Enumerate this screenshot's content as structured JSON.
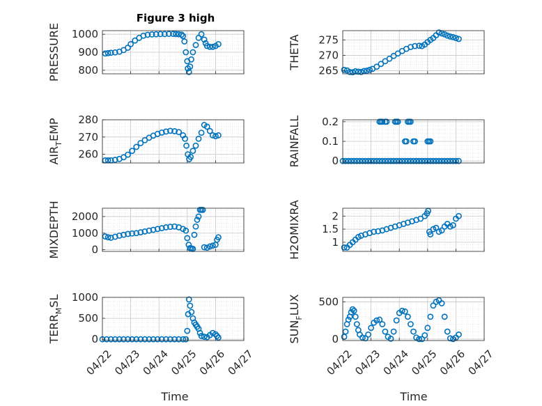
{
  "figure": {
    "title": "Figure 3 high",
    "xlabel": "Time",
    "x_ticks": [
      "04/22",
      "04/23",
      "04/24",
      "04/25",
      "04/26",
      "04/27"
    ]
  },
  "colors": {
    "marker": "#0072BD",
    "grid": "#d9d9d9",
    "axis": "#262626"
  },
  "chart_data": [
    {
      "type": "scatter",
      "id": "pressure",
      "ylabel_parts": [
        "PRESSURE"
      ],
      "ylim": [
        780,
        1020
      ],
      "yticks": [
        800,
        900,
        1000
      ],
      "xlim": [
        "04/22",
        "04/27"
      ],
      "grid": true,
      "x": [
        0.1,
        0.2,
        0.3,
        0.45,
        0.6,
        0.75,
        0.9,
        1.0,
        1.15,
        1.3,
        1.45,
        1.6,
        1.75,
        1.9,
        2.05,
        2.2,
        2.35,
        2.5,
        2.6,
        2.7,
        2.8,
        2.85,
        2.9,
        2.95,
        3.0,
        3.02,
        3.06,
        3.1,
        3.14,
        3.2,
        3.3,
        3.4,
        3.5,
        3.6,
        3.65,
        3.7,
        3.8,
        3.9,
        4.0,
        4.1
      ],
      "y": [
        893,
        895,
        897,
        899,
        903,
        912,
        925,
        945,
        965,
        980,
        992,
        997,
        999,
        1000,
        1001,
        1001,
        1002,
        1002,
        1001,
        1000,
        998,
        990,
        960,
        900,
        850,
        810,
        790,
        820,
        860,
        900,
        940,
        980,
        1000,
        970,
        950,
        935,
        930,
        930,
        935,
        945
      ]
    },
    {
      "type": "scatter",
      "id": "theta",
      "ylabel_parts": [
        "THETA"
      ],
      "ylim": [
        264,
        278
      ],
      "yticks": [
        265,
        270,
        275
      ],
      "xlim": [
        "04/22",
        "04/27"
      ],
      "grid": true,
      "x": [
        0.05,
        0.15,
        0.25,
        0.35,
        0.45,
        0.55,
        0.65,
        0.75,
        0.85,
        0.95,
        1.05,
        1.2,
        1.35,
        1.5,
        1.65,
        1.8,
        1.95,
        2.1,
        2.25,
        2.4,
        2.55,
        2.7,
        2.8,
        2.9,
        3.0,
        3.1,
        3.2,
        3.3,
        3.4,
        3.5,
        3.6,
        3.7,
        3.8,
        3.9,
        4.0,
        4.1
      ],
      "y": [
        265.3,
        265.1,
        264.6,
        264.5,
        264.8,
        264.7,
        264.6,
        264.9,
        265.0,
        265.3,
        265.6,
        266.3,
        267.2,
        268.1,
        268.9,
        269.8,
        270.6,
        271.4,
        272.1,
        272.7,
        273.0,
        273.1,
        273.0,
        273.5,
        274.3,
        275.0,
        275.6,
        276.5,
        277.4,
        277.1,
        276.8,
        276.4,
        276.1,
        275.9,
        275.6,
        275.3
      ]
    },
    {
      "type": "scatter",
      "id": "airtemp",
      "ylabel_parts": [
        "AIR",
        "T",
        "EMP"
      ],
      "ylim": [
        255,
        280
      ],
      "yticks": [
        260,
        270,
        280
      ],
      "xlim": [
        "04/22",
        "04/27"
      ],
      "grid": true,
      "x": [
        0.1,
        0.2,
        0.3,
        0.45,
        0.6,
        0.75,
        0.9,
        1.05,
        1.2,
        1.35,
        1.5,
        1.65,
        1.8,
        1.95,
        2.1,
        2.25,
        2.4,
        2.55,
        2.7,
        2.85,
        2.92,
        2.97,
        3.02,
        3.07,
        3.12,
        3.2,
        3.3,
        3.4,
        3.5,
        3.6,
        3.7,
        3.8,
        3.9,
        4.0,
        4.1
      ],
      "y": [
        256.5,
        256.5,
        256.5,
        256.8,
        257.3,
        258.3,
        259.8,
        262.0,
        264.3,
        266.5,
        268.2,
        269.6,
        270.8,
        271.8,
        272.6,
        273.2,
        273.6,
        273.4,
        272.9,
        271.0,
        269.0,
        265.0,
        260.0,
        257.2,
        258.5,
        262.0,
        265.0,
        269.0,
        272.5,
        277.0,
        276.0,
        273.5,
        271.0,
        270.5,
        271.0
      ]
    },
    {
      "type": "scatter",
      "id": "rainfall",
      "ylabel_parts": [
        "RAINFALL"
      ],
      "ylim": [
        -0.01,
        0.21
      ],
      "yticks": [
        0,
        0.1,
        0.2
      ],
      "ytick_labels": [
        "0",
        "0.1",
        "0.2"
      ],
      "xlim": [
        "04/22",
        "04/27"
      ],
      "grid": true,
      "x": [
        0.0,
        0.1,
        0.2,
        0.3,
        0.4,
        0.5,
        0.6,
        0.7,
        0.8,
        0.9,
        1.0,
        1.1,
        1.2,
        1.3,
        1.4,
        1.5,
        1.6,
        1.7,
        1.8,
        1.9,
        2.0,
        2.1,
        2.2,
        2.3,
        2.4,
        2.5,
        2.6,
        2.7,
        2.8,
        2.9,
        3.0,
        3.1,
        3.2,
        3.3,
        3.4,
        3.5,
        3.6,
        3.7,
        3.8,
        3.9,
        4.0,
        4.1,
        1.3,
        1.35,
        1.4,
        1.5,
        1.55,
        1.85,
        1.9,
        1.95,
        2.2,
        2.25,
        2.3,
        2.35,
        2.4,
        2.5,
        2.55,
        3.0,
        3.05,
        3.1
      ],
      "y": [
        0,
        0,
        0,
        0,
        0,
        0,
        0,
        0,
        0,
        0,
        0,
        0,
        0,
        0,
        0,
        0,
        0,
        0,
        0,
        0,
        0,
        0,
        0,
        0,
        0,
        0,
        0,
        0,
        0,
        0,
        0,
        0,
        0,
        0,
        0,
        0,
        0,
        0,
        0,
        0,
        0,
        0,
        0.2,
        0.2,
        0.2,
        0.2,
        0.2,
        0.2,
        0.2,
        0.2,
        0.1,
        0.1,
        0.2,
        0.2,
        0.2,
        0.1,
        0.1,
        0.1,
        0.1,
        0.1
      ]
    },
    {
      "type": "scatter",
      "id": "mixdepth",
      "ylabel_parts": [
        "MIXDEPTH"
      ],
      "ylim": [
        -100,
        2500
      ],
      "yticks": [
        0,
        1000,
        2000
      ],
      "xlim": [
        "04/22",
        "04/27"
      ],
      "grid": true,
      "x": [
        0.1,
        0.2,
        0.3,
        0.45,
        0.6,
        0.75,
        0.9,
        1.05,
        1.2,
        1.35,
        1.5,
        1.65,
        1.8,
        1.95,
        2.1,
        2.25,
        2.4,
        2.55,
        2.7,
        2.85,
        2.95,
        3.0,
        3.05,
        3.1,
        3.15,
        3.2,
        3.25,
        3.3,
        3.35,
        3.4,
        3.45,
        3.5,
        3.55,
        3.6,
        3.7,
        3.8,
        3.9,
        4.0,
        4.05,
        4.1
      ],
      "y": [
        800,
        750,
        720,
        780,
        850,
        900,
        950,
        980,
        1000,
        1050,
        1100,
        1150,
        1200,
        1250,
        1300,
        1350,
        1380,
        1400,
        1350,
        1250,
        1150,
        700,
        300,
        100,
        80,
        50,
        900,
        1400,
        1800,
        2000,
        2400,
        2400,
        2400,
        150,
        120,
        200,
        250,
        300,
        600,
        750
      ]
    },
    {
      "type": "scatter",
      "id": "h2omixra",
      "ylabel_parts": [
        "H2OMIXRA"
      ],
      "ylim": [
        0.65,
        2.3
      ],
      "yticks": [
        1,
        1.5,
        2
      ],
      "ytick_labels": [
        "1",
        "1.5",
        "2"
      ],
      "xlim": [
        "04/22",
        "04/27"
      ],
      "grid": true,
      "x": [
        0.05,
        0.15,
        0.25,
        0.35,
        0.45,
        0.55,
        0.65,
        0.8,
        0.95,
        1.1,
        1.25,
        1.4,
        1.55,
        1.7,
        1.85,
        2.0,
        2.15,
        2.3,
        2.45,
        2.6,
        2.75,
        2.9,
        2.98,
        3.02,
        3.06,
        3.1,
        3.2,
        3.3,
        3.4,
        3.5,
        3.6,
        3.7,
        3.8,
        3.9,
        4.0,
        4.1
      ],
      "y": [
        0.8,
        0.8,
        0.9,
        1.0,
        1.1,
        1.2,
        1.25,
        1.3,
        1.35,
        1.4,
        1.42,
        1.45,
        1.5,
        1.55,
        1.6,
        1.65,
        1.7,
        1.75,
        1.8,
        1.85,
        1.9,
        2.0,
        2.1,
        2.2,
        1.4,
        1.3,
        1.5,
        1.55,
        1.4,
        1.45,
        1.6,
        1.7,
        1.6,
        1.65,
        1.9,
        2.0
      ]
    },
    {
      "type": "scatter",
      "id": "terrmsl",
      "ylabel_parts": [
        "TERR",
        "M",
        "SL"
      ],
      "ylim": [
        -30,
        1000
      ],
      "yticks": [
        0,
        500,
        1000
      ],
      "xlim": [
        "04/22",
        "04/27"
      ],
      "grid": true,
      "x": [
        0.0,
        0.15,
        0.3,
        0.45,
        0.6,
        0.75,
        0.9,
        1.05,
        1.2,
        1.35,
        1.5,
        1.65,
        1.8,
        1.95,
        2.1,
        2.25,
        2.4,
        2.55,
        2.7,
        2.85,
        2.95,
        3.0,
        3.03,
        3.06,
        3.1,
        3.15,
        3.2,
        3.25,
        3.3,
        3.35,
        3.4,
        3.45,
        3.5,
        3.6,
        3.7,
        3.8,
        3.9,
        4.0,
        4.05,
        4.1
      ],
      "y": [
        0,
        0,
        0,
        0,
        0,
        0,
        0,
        0,
        0,
        0,
        0,
        0,
        0,
        0,
        0,
        0,
        0,
        0,
        0,
        0,
        0,
        200,
        600,
        950,
        800,
        650,
        500,
        400,
        350,
        300,
        250,
        150,
        80,
        60,
        50,
        100,
        150,
        120,
        80,
        40
      ]
    },
    {
      "type": "scatter",
      "id": "sunflux",
      "ylabel_parts": [
        "SUN",
        "F",
        "LUX"
      ],
      "ylim": [
        -20,
        560
      ],
      "yticks": [
        0,
        500
      ],
      "xlim": [
        "04/22",
        "04/27"
      ],
      "grid": true,
      "x": [
        0.05,
        0.1,
        0.15,
        0.2,
        0.25,
        0.3,
        0.35,
        0.4,
        0.45,
        0.5,
        0.55,
        0.6,
        0.7,
        0.8,
        0.9,
        1.0,
        1.1,
        1.2,
        1.3,
        1.4,
        1.5,
        1.6,
        1.7,
        1.8,
        1.9,
        2.0,
        2.1,
        2.2,
        2.3,
        2.4,
        2.5,
        2.6,
        2.7,
        2.8,
        2.9,
        3.0,
        3.1,
        3.2,
        3.3,
        3.4,
        3.5,
        3.6,
        3.7,
        3.8,
        3.9,
        4.0,
        4.1
      ],
      "y": [
        30,
        100,
        200,
        260,
        300,
        360,
        400,
        380,
        300,
        200,
        120,
        60,
        20,
        10,
        60,
        150,
        220,
        250,
        260,
        200,
        100,
        30,
        5,
        100,
        250,
        350,
        380,
        370,
        300,
        200,
        100,
        20,
        0,
        0,
        50,
        150,
        300,
        450,
        500,
        520,
        480,
        300,
        100,
        10,
        0,
        20,
        60
      ]
    }
  ]
}
